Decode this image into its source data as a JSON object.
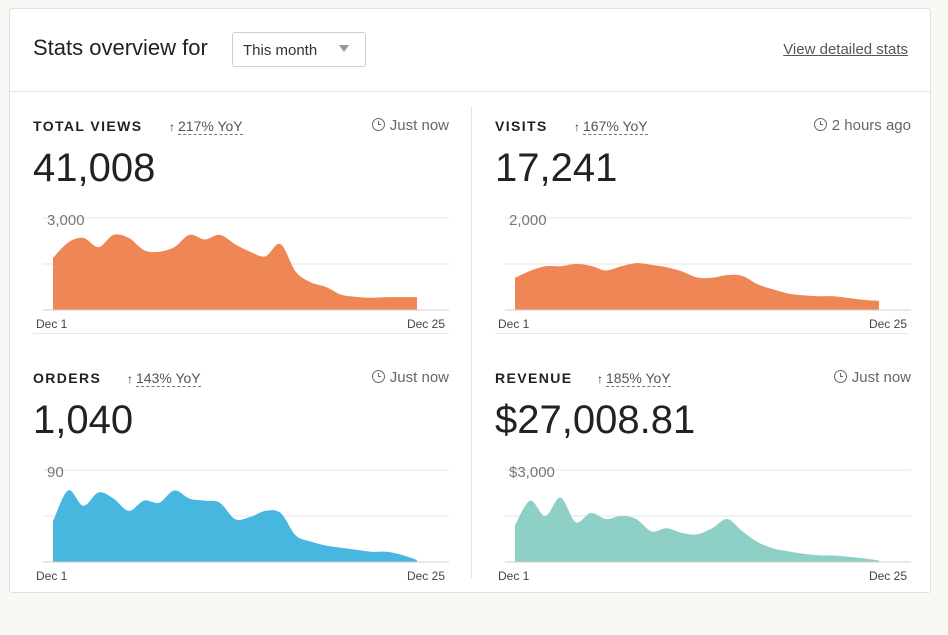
{
  "header": {
    "title": "Stats overview for",
    "period_select": {
      "value": "This month"
    },
    "detail_link": "View detailed stats"
  },
  "panels": [
    {
      "id": "total-views",
      "label": "TOTAL VIEWS",
      "yoy": "217% YoY",
      "updated": "Just now",
      "value": "41,008",
      "color": "#ee8755",
      "chart": {
        "top_tick": "3,000",
        "start_label": "Dec 1",
        "end_label": "Dec 25"
      }
    },
    {
      "id": "visits",
      "label": "VISITS",
      "yoy": "167% YoY",
      "updated": "2 hours ago",
      "value": "17,241",
      "color": "#ee8755",
      "chart": {
        "top_tick": "2,000",
        "start_label": "Dec 1",
        "end_label": "Dec 25"
      }
    },
    {
      "id": "orders",
      "label": "ORDERS",
      "yoy": "143% YoY",
      "updated": "Just now",
      "value": "1,040",
      "color": "#47b7e0",
      "chart": {
        "top_tick": "90",
        "start_label": "Dec 1",
        "end_label": "Dec 25"
      }
    },
    {
      "id": "revenue",
      "label": "REVENUE",
      "yoy": "185% YoY",
      "updated": "Just now",
      "value": "$27,008.81",
      "color": "#8ecfc6",
      "chart": {
        "top_tick": "$3,000",
        "start_label": "Dec 1",
        "end_label": "Dec 25"
      }
    }
  ],
  "chart_data": [
    {
      "type": "area",
      "title": "TOTAL VIEWS",
      "x": [
        1,
        2,
        3,
        4,
        5,
        6,
        7,
        8,
        9,
        10,
        11,
        12,
        13,
        14,
        15,
        16,
        17,
        18,
        19,
        20,
        21,
        22,
        23,
        24,
        25
      ],
      "y": [
        1700,
        2200,
        2350,
        2050,
        2450,
        2350,
        1950,
        1900,
        2050,
        2450,
        2300,
        2450,
        2150,
        1900,
        1750,
        2150,
        1250,
        900,
        750,
        500,
        430,
        400,
        420,
        420,
        420
      ],
      "ylim": [
        0,
        3000
      ]
    },
    {
      "type": "area",
      "title": "VISITS",
      "x": [
        1,
        2,
        3,
        4,
        5,
        6,
        7,
        8,
        9,
        10,
        11,
        12,
        13,
        14,
        15,
        16,
        17,
        18,
        19,
        20,
        21,
        22,
        23,
        24,
        25
      ],
      "y": [
        700,
        850,
        950,
        950,
        1000,
        960,
        860,
        950,
        1020,
        980,
        930,
        840,
        710,
        700,
        760,
        740,
        560,
        450,
        360,
        320,
        300,
        300,
        260,
        220,
        200
      ],
      "ylim": [
        0,
        2000
      ]
    },
    {
      "type": "area",
      "title": "ORDERS",
      "x": [
        1,
        2,
        3,
        4,
        5,
        6,
        7,
        8,
        9,
        10,
        11,
        12,
        13,
        14,
        15,
        16,
        17,
        18,
        19,
        20,
        21,
        22,
        23,
        24,
        25
      ],
      "y": [
        40,
        70,
        55,
        68,
        62,
        50,
        60,
        58,
        70,
        62,
        60,
        58,
        42,
        44,
        50,
        48,
        26,
        20,
        16,
        14,
        12,
        10,
        10,
        7,
        2
      ],
      "ylim": [
        0,
        90
      ]
    },
    {
      "type": "area",
      "title": "REVENUE",
      "x": [
        1,
        2,
        3,
        4,
        5,
        6,
        7,
        8,
        9,
        10,
        11,
        12,
        13,
        14,
        15,
        16,
        17,
        18,
        19,
        20,
        21,
        22,
        23,
        24,
        25
      ],
      "y": [
        1200,
        2000,
        1500,
        2100,
        1300,
        1600,
        1400,
        1500,
        1400,
        1000,
        1100,
        950,
        900,
        1100,
        1400,
        1000,
        650,
        450,
        350,
        270,
        220,
        210,
        170,
        120,
        50
      ],
      "ylim": [
        0,
        3000
      ]
    }
  ]
}
